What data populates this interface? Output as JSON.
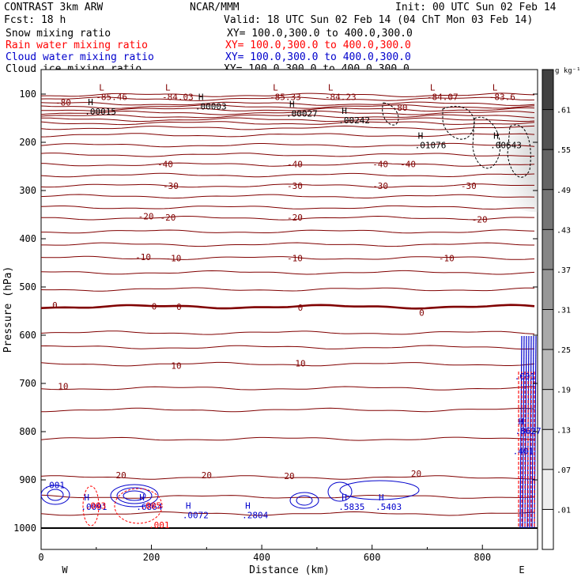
{
  "header": {
    "title_left": "CONTRAST  3km ARW",
    "title_center": "NCAR/MMM",
    "init": "Init: 00 UTC Sun 02 Feb 14",
    "fcst": "Fcst:   18 h",
    "valid": "Valid: 18 UTC Sun 02 Feb 14 (04 ChT Mon 03 Feb 14)",
    "fields": [
      {
        "name": "Snow mixing ratio",
        "xy": "XY= 100.0,300.0 to 400.0,300.0",
        "color": "#000000"
      },
      {
        "name": "Rain water mixing ratio",
        "xy": "XY= 100.0,300.0 to 400.0,300.0",
        "color": "#ff0000"
      },
      {
        "name": "Cloud water mixing ratio",
        "xy": "XY= 100.0,300.0 to 400.0,300.0",
        "color": "#0000cc"
      },
      {
        "name": "Cloud ice mixing ratio",
        "xy": "XY= 100.0,300.0 to 400.0,300.0",
        "color": "#000000"
      }
    ]
  },
  "chart_data": {
    "type": "cross-section",
    "xlabel": "Distance (km)",
    "ylabel": "Pressure (hPa)",
    "xlim": [
      0,
      900
    ],
    "ylim": [
      1000,
      50
    ],
    "x_ticks": [
      0,
      200,
      400,
      600,
      800
    ],
    "x_tick_labels": [
      "0",
      "200",
      "400",
      "600",
      "800"
    ],
    "y_ticks": [
      100,
      200,
      300,
      400,
      500,
      600,
      700,
      800,
      900,
      1000
    ],
    "y_tick_labels": [
      "100",
      "200",
      "300",
      "400",
      "500",
      "600",
      "700",
      "800",
      "900",
      "1000"
    ],
    "endpoints": {
      "left": "W",
      "right": "E"
    },
    "colorbar": {
      "unit": "g kg⁻¹",
      "levels": [
        ".01",
        ".07",
        ".13",
        ".19",
        ".25",
        ".31",
        ".37",
        ".43",
        ".49",
        ".55",
        ".61"
      ]
    },
    "temperature_contours": [
      {
        "value": -80,
        "p": 132,
        "label": "-80"
      },
      {
        "value": -70,
        "p": 146,
        "label": ""
      },
      {
        "value": -60,
        "p": 160,
        "label": ""
      },
      {
        "value": -50,
        "p": 185,
        "label": ""
      },
      {
        "value": -40,
        "p": 246,
        "label": "-40"
      },
      {
        "value": -30,
        "p": 290,
        "label": "-30"
      },
      {
        "value": -20,
        "p": 357,
        "label": "-20"
      },
      {
        "value": -10,
        "p": 440,
        "label": "-10"
      },
      {
        "value": 0,
        "p": 541,
        "label": "0"
      },
      {
        "value": 10,
        "p": 660,
        "label": "10"
      },
      {
        "value": 20,
        "p": 895,
        "label": "20"
      }
    ],
    "contour_labels": [
      {
        "x": 40,
        "p": 117,
        "text": "-80"
      },
      {
        "x": 650,
        "p": 128,
        "text": "-80"
      },
      {
        "x": 225,
        "p": 245,
        "text": "-40"
      },
      {
        "x": 460,
        "p": 245,
        "text": "-40"
      },
      {
        "x": 615,
        "p": 245,
        "text": "-40"
      },
      {
        "x": 665,
        "p": 245,
        "text": "-40"
      },
      {
        "x": 235,
        "p": 290,
        "text": "-30"
      },
      {
        "x": 460,
        "p": 290,
        "text": "-30"
      },
      {
        "x": 615,
        "p": 290,
        "text": "-30"
      },
      {
        "x": 775,
        "p": 290,
        "text": "-30"
      },
      {
        "x": 190,
        "p": 353,
        "text": "-20"
      },
      {
        "x": 230,
        "p": 356,
        "text": "-20"
      },
      {
        "x": 460,
        "p": 356,
        "text": "-20"
      },
      {
        "x": 795,
        "p": 360,
        "text": "-20"
      },
      {
        "x": 185,
        "p": 438,
        "text": "-10"
      },
      {
        "x": 240,
        "p": 440,
        "text": "-10"
      },
      {
        "x": 460,
        "p": 440,
        "text": "-10"
      },
      {
        "x": 735,
        "p": 440,
        "text": "-10"
      },
      {
        "x": 25,
        "p": 538,
        "text": "0"
      },
      {
        "x": 205,
        "p": 540,
        "text": "0"
      },
      {
        "x": 250,
        "p": 541,
        "text": "0"
      },
      {
        "x": 470,
        "p": 543,
        "text": "0"
      },
      {
        "x": 690,
        "p": 553,
        "text": "0"
      },
      {
        "x": 245,
        "p": 663,
        "text": "10"
      },
      {
        "x": 470,
        "p": 658,
        "text": "10"
      },
      {
        "x": 40,
        "p": 706,
        "text": "10"
      },
      {
        "x": 145,
        "p": 890,
        "text": "20"
      },
      {
        "x": 300,
        "p": 890,
        "text": "20"
      },
      {
        "x": 450,
        "p": 892,
        "text": "20"
      },
      {
        "x": 680,
        "p": 887,
        "text": "20"
      }
    ],
    "extrema": [
      {
        "kind": "L",
        "x": 105,
        "p": 88,
        "value": "-85.46",
        "color": "#800000"
      },
      {
        "kind": "L",
        "x": 225,
        "p": 88,
        "value": "-84.03",
        "color": "#800000"
      },
      {
        "kind": "L",
        "x": 420,
        "p": 88,
        "value": "-85.33",
        "color": "#800000"
      },
      {
        "kind": "L",
        "x": 520,
        "p": 88,
        "value": "-84.23",
        "color": "#800000"
      },
      {
        "kind": "L",
        "x": 705,
        "p": 88,
        "value": "-84.07",
        "color": "#800000"
      },
      {
        "kind": "L",
        "x": 818,
        "p": 88,
        "value": "-83.6",
        "color": "#800000"
      },
      {
        "kind": "H",
        "x": 85,
        "p": 118,
        "value": ".00015",
        "color": "#000000"
      },
      {
        "kind": "H",
        "x": 285,
        "p": 107,
        "value": ".00003",
        "color": "#000000"
      },
      {
        "kind": "H",
        "x": 450,
        "p": 122,
        "value": ".00027",
        "color": "#000000"
      },
      {
        "kind": "H",
        "x": 545,
        "p": 136,
        "value": ".00242",
        "color": "#000000"
      },
      {
        "kind": "H",
        "x": 683,
        "p": 188,
        "value": ".01076",
        "color": "#000000"
      },
      {
        "kind": "H",
        "x": 820,
        "p": 188,
        "value": ".00643",
        "color": "#000000"
      },
      {
        "kind": "H",
        "x": 78,
        "p": 938,
        "value": ".0091",
        "color": "#0000cc"
      },
      {
        "kind": "H",
        "x": 178,
        "p": 938,
        "value": ".6864",
        "color": "#0000cc"
      },
      {
        "kind": "H",
        "x": 262,
        "p": 955,
        "value": ".0072",
        "color": "#0000cc"
      },
      {
        "kind": "H",
        "x": 370,
        "p": 955,
        "value": ".2804",
        "color": "#0000cc"
      },
      {
        "kind": "H",
        "x": 545,
        "p": 938,
        "value": ".5835",
        "color": "#0000cc"
      },
      {
        "kind": "H",
        "x": 612,
        "p": 938,
        "value": ".5403",
        "color": "#0000cc"
      },
      {
        "kind": "H",
        "x": 865,
        "p": 780,
        "value": ".8627",
        "color": "#0000cc"
      }
    ],
    "small_labels": [
      {
        "x": 5,
        "p": 917,
        "text": ".001",
        "color": "#0000cc"
      },
      {
        "x": 80,
        "p": 960,
        "text": ".003",
        "color": "#ff0000"
      },
      {
        "x": 180,
        "p": 960,
        "text": ".005",
        "color": "#ff0000"
      },
      {
        "x": 195,
        "p": 1000,
        "text": ".001",
        "color": "#ff0000"
      },
      {
        "x": 858,
        "p": 692,
        "text": ".001",
        "color": "#0000cc"
      },
      {
        "x": 855,
        "p": 847,
        "text": ".401",
        "color": "#0000cc"
      }
    ]
  }
}
